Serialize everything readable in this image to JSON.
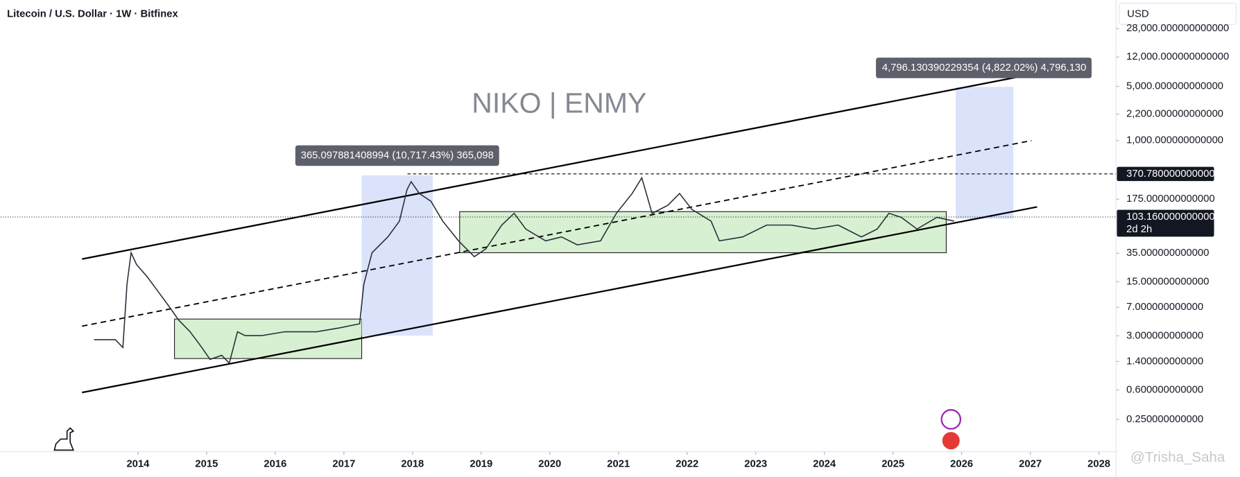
{
  "chart_data": {
    "type": "line",
    "title": "Litecoin / U.S. Dollar · 1W · Bitfinex",
    "watermark": "NIKO | ENMY",
    "currency": "USD",
    "credit": "@Trisha_Saha",
    "annotations": [
      "365.097881408994 (10,717.43%) 365,098",
      "4,796.130390229354 (4,822.02%) 4,796,130"
    ],
    "log_scale": true,
    "color": "#2a2e39",
    "x": [
      2013.36,
      2013.67,
      2013.78,
      2013.84,
      2013.9,
      2013.98,
      2014.13,
      2014.3,
      2014.47,
      2014.59,
      2014.76,
      2014.93,
      2015.05,
      2015.22,
      2015.33,
      2015.45,
      2015.56,
      2015.8,
      2016.14,
      2016.6,
      2016.95,
      2017.23,
      2017.29,
      2017.41,
      2017.64,
      2017.81,
      2017.92,
      2017.98,
      2018.1,
      2018.27,
      2018.44,
      2018.67,
      2018.9,
      2019.07,
      2019.3,
      2019.48,
      2019.65,
      2019.94,
      2020.17,
      2020.4,
      2020.74,
      2020.97,
      2021.2,
      2021.34,
      2021.49,
      2021.72,
      2021.89,
      2022.07,
      2022.35,
      2022.47,
      2022.81,
      2023.16,
      2023.51,
      2023.85,
      2024.2,
      2024.54,
      2024.77,
      2024.94,
      2025.12,
      2025.35,
      2025.64,
      2025.89
    ],
    "values": [
      2.68,
      2.68,
      2.12,
      13.9,
      35.6,
      25.0,
      17.6,
      11.0,
      6.87,
      4.83,
      3.39,
      2.12,
      1.49,
      1.68,
      1.33,
      3.39,
      3.02,
      3.02,
      3.39,
      3.39,
      3.82,
      4.29,
      13.9,
      35.6,
      56.9,
      91,
      233,
      295,
      207,
      164,
      91,
      50.6,
      31.6,
      40,
      81,
      115,
      72,
      50.6,
      56.9,
      45,
      50.6,
      115,
      207,
      331,
      115,
      146,
      207,
      129,
      91,
      50.6,
      56.9,
      81,
      81,
      72,
      81,
      56.9,
      72,
      115,
      102,
      72,
      102,
      91
    ],
    "xlim": [
      2012.0,
      2028.25
    ],
    "ylim": [
      0.0955,
      65500
    ],
    "xticks": [
      2014,
      2015,
      2016,
      2017,
      2018,
      2019,
      2020,
      2021,
      2022,
      2023,
      2024,
      2025,
      2026,
      2027,
      2028
    ],
    "yticks": [
      {
        "value": 28000,
        "label": "28,000.000000000000"
      },
      {
        "value": 12000,
        "label": "12,000.000000000000"
      },
      {
        "value": 5000,
        "label": "5,000.000000000000"
      },
      {
        "value": 2200,
        "label": "2,200.000000000000"
      },
      {
        "value": 1000,
        "label": "1,000.000000000000"
      },
      {
        "value": 175,
        "label": "175.000000000000"
      },
      {
        "value": 35,
        "label": "35.000000000000"
      },
      {
        "value": 15,
        "label": "15.000000000000"
      },
      {
        "value": 7,
        "label": "7.000000000000"
      },
      {
        "value": 3,
        "label": "3.000000000000"
      },
      {
        "value": 1.4,
        "label": "1.400000000000"
      },
      {
        "value": 0.6,
        "label": "0.600000000000"
      },
      {
        "value": 0.25,
        "label": "0.250000000000"
      }
    ],
    "high_line": {
      "value": 370.78,
      "label": "370.780000000000"
    },
    "last_price": {
      "value": 103.16,
      "label": "103.160000000000",
      "countdown": "2d 2h"
    }
  }
}
